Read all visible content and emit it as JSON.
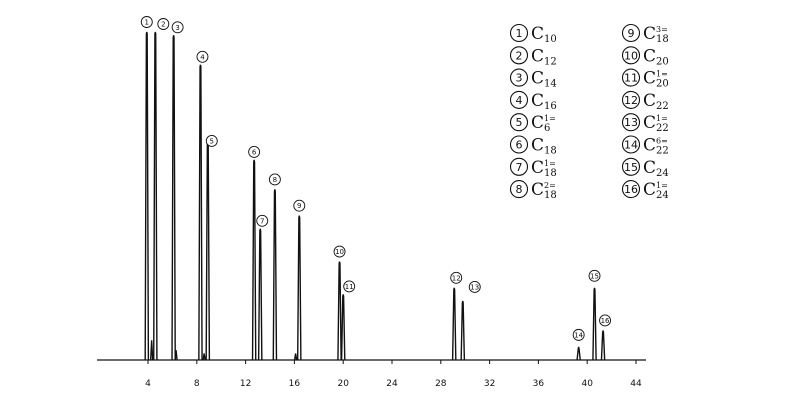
{
  "chart_data": {
    "type": "line",
    "title": "",
    "xlabel": "",
    "ylabel": "",
    "xlim": [
      -0.5,
      45
    ],
    "ylim": [
      0,
      100
    ],
    "grid": false,
    "legend_placement": "top-right",
    "x_ticks": [
      "4",
      "8",
      "12",
      "16",
      "20",
      "24",
      "28",
      "32",
      "36",
      "40",
      "44"
    ],
    "peaks": [
      {
        "num": "1",
        "x": 3.9,
        "h": 100
      },
      {
        "num": "2",
        "x": 4.6,
        "h": 100
      },
      {
        "num": "3",
        "x": 6.1,
        "h": 99
      },
      {
        "num": "4",
        "x": 8.3,
        "h": 90
      },
      {
        "num": "5",
        "x": 8.9,
        "h": 68
      },
      {
        "num": "6",
        "x": 12.7,
        "h": 61
      },
      {
        "num": "7",
        "x": 13.2,
        "h": 40
      },
      {
        "num": "8",
        "x": 14.4,
        "h": 52
      },
      {
        "num": "9",
        "x": 16.4,
        "h": 44
      },
      {
        "num": "10",
        "x": 19.7,
        "h": 30
      },
      {
        "num": "11",
        "x": 20.0,
        "h": 20
      },
      {
        "num": "12",
        "x": 29.1,
        "h": 22
      },
      {
        "num": "13",
        "x": 29.8,
        "h": 18
      },
      {
        "num": "14",
        "x": 39.3,
        "h": 4
      },
      {
        "num": "15",
        "x": 40.6,
        "h": 22
      },
      {
        "num": "16",
        "x": 41.3,
        "h": 9
      }
    ],
    "legend": [
      {
        "num": "1",
        "sub": "10"
      },
      {
        "num": "2",
        "sub": "12"
      },
      {
        "num": "3",
        "sub": "14"
      },
      {
        "num": "4",
        "sub": "16"
      },
      {
        "num": "5",
        "sub": "6",
        "sup": "1="
      },
      {
        "num": "6",
        "sub": "18"
      },
      {
        "num": "7",
        "sub": "18",
        "sup": "1="
      },
      {
        "num": "8",
        "sub": "18",
        "sup": "2="
      },
      {
        "num": "9",
        "sub": "18",
        "sup": "3="
      },
      {
        "num": "10",
        "sub": "20"
      },
      {
        "num": "11",
        "sub": "20",
        "sup": "1="
      },
      {
        "num": "12",
        "sub": "22"
      },
      {
        "num": "13",
        "sub": "22",
        "sup": "1="
      },
      {
        "num": "14",
        "sub": "22",
        "sup": "6="
      },
      {
        "num": "15",
        "sub": "24"
      },
      {
        "num": "16",
        "sub": "24",
        "sup": "1="
      }
    ],
    "legend_letter": "C"
  }
}
